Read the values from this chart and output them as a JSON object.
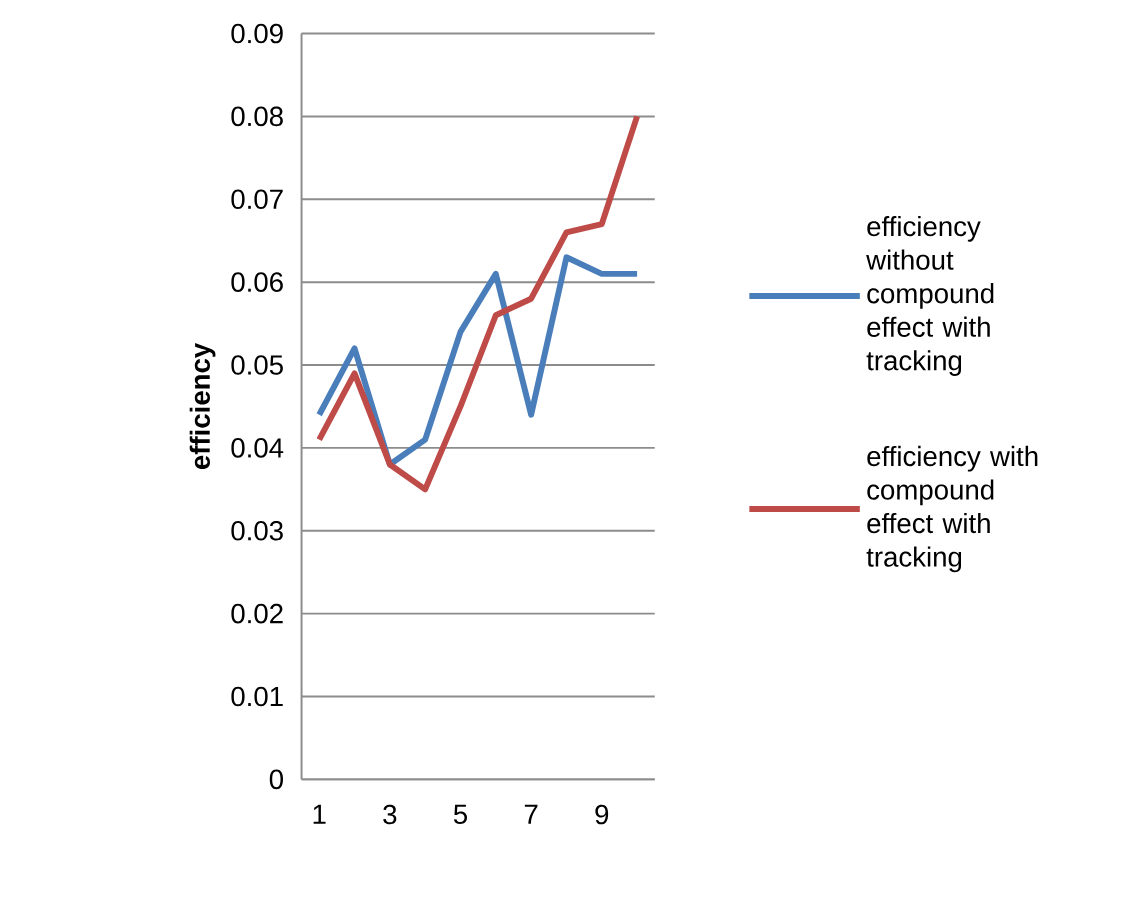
{
  "chart_data": {
    "type": "line",
    "ylabel": "efficiency",
    "categories": [
      "1",
      null,
      "3",
      null,
      "5",
      null,
      "7",
      null,
      "9",
      null
    ],
    "series": [
      {
        "name": "efficiency without compound effect with tracking",
        "color": "#4a7ebb",
        "values": [
          0.044,
          0.052,
          0.038,
          0.041,
          0.054,
          0.061,
          0.044,
          0.063,
          0.061,
          0.061
        ]
      },
      {
        "name": "efficiency with compound effect with tracking",
        "color": "#be4b48",
        "values": [
          0.041,
          0.049,
          0.038,
          0.035,
          0.045,
          0.056,
          0.058,
          0.066,
          0.067,
          0.08
        ]
      }
    ],
    "ylim": [
      0,
      0.09
    ],
    "yticks": [
      0,
      0.01,
      0.02,
      0.03,
      0.04,
      0.05,
      0.06,
      0.07,
      0.08,
      0.09
    ],
    "grid": "y",
    "legend": "right",
    "marker": "none",
    "line_style": "solid"
  }
}
